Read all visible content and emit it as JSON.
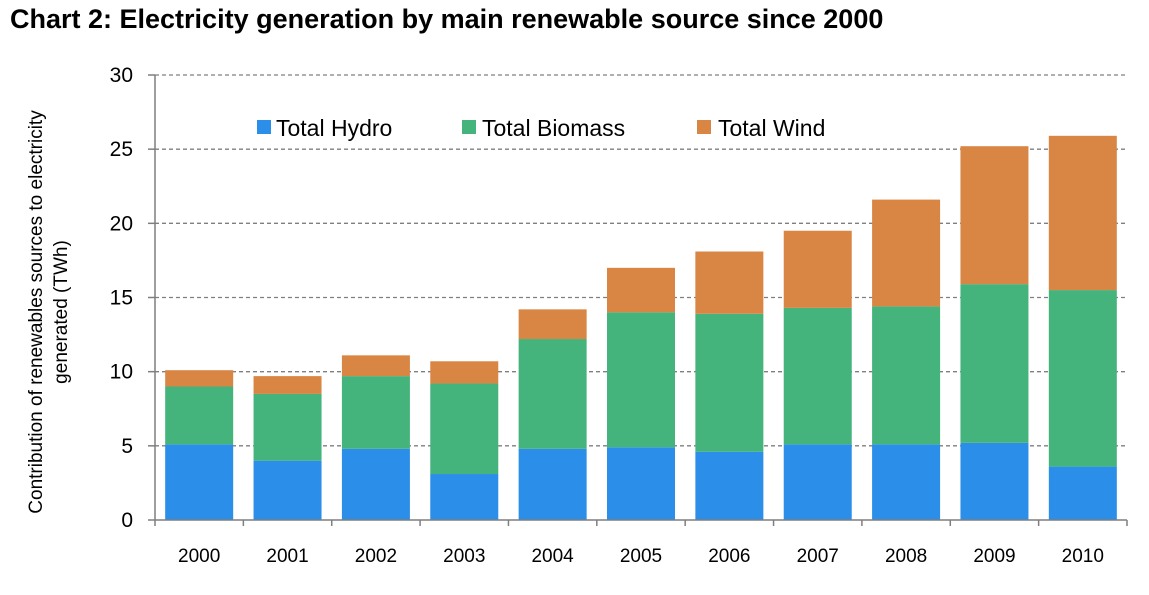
{
  "title": "Chart 2: Electricity generation by main renewable source since 2000",
  "chart_data": {
    "type": "bar",
    "stacked": true,
    "categories": [
      "2000",
      "2001",
      "2002",
      "2003",
      "2004",
      "2005",
      "2006",
      "2007",
      "2008",
      "2009",
      "2010"
    ],
    "series": [
      {
        "name": "Total Hydro",
        "color": "#2b8ee8",
        "values": [
          5.1,
          4.0,
          4.8,
          3.1,
          4.8,
          4.9,
          4.6,
          5.1,
          5.1,
          5.2,
          3.6
        ]
      },
      {
        "name": "Total Biomass",
        "color": "#44b47c",
        "values": [
          3.9,
          4.5,
          4.9,
          6.1,
          7.4,
          9.1,
          9.3,
          9.2,
          9.3,
          10.7,
          11.9
        ]
      },
      {
        "name": "Total Wind",
        "color": "#d98544",
        "values": [
          1.1,
          1.2,
          1.4,
          1.5,
          2.0,
          3.0,
          4.2,
          5.2,
          7.2,
          9.3,
          10.4
        ]
      }
    ],
    "ylabel_lines": [
      "Contribution of  renewables sources to electricity",
      "generated (TWh)"
    ],
    "ylim": [
      0,
      30
    ],
    "yticks": [
      0,
      5,
      10,
      15,
      20,
      25,
      30
    ],
    "grid": true,
    "legend_position": "top"
  }
}
